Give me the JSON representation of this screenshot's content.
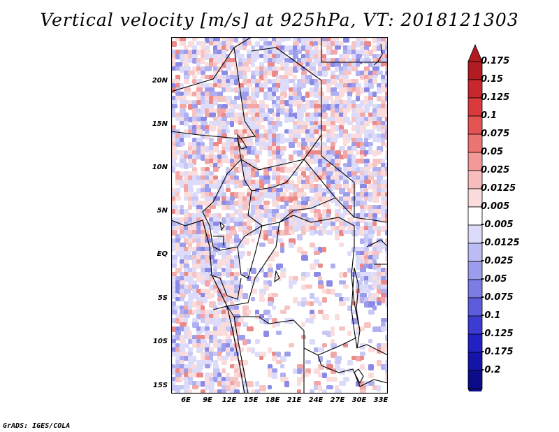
{
  "title": "Vertical velocity [m/s] at 925hPa, VT: 2018121303",
  "footer": "GrADS: IGES/COLA",
  "map": {
    "lon_range": [
      3,
      33
    ],
    "lat_range": [
      -16,
      24
    ],
    "lat_labels": [
      "20N",
      "15N",
      "10N",
      "5N",
      "EQ",
      "5S",
      "10S",
      "15S"
    ],
    "lon_labels": [
      "6E",
      "9E",
      "12E",
      "15E",
      "18E",
      "21E",
      "24E",
      "27E",
      "30E",
      "33E"
    ]
  },
  "colorbar": {
    "labels": [
      "0.175",
      "0.15",
      "0.125",
      "0.1",
      "0.075",
      "0.05",
      "0.025",
      "0.0125",
      "0.005",
      "-0.005",
      "-0.0125",
      "-0.025",
      "-0.05",
      "-0.075",
      "-0.1",
      "-0.125",
      "-0.175",
      "-0.2"
    ],
    "colors": [
      "#b01c22",
      "#c8282d",
      "#da3a3c",
      "#e45452",
      "#ec7472",
      "#f29a98",
      "#f7bcbb",
      "#fbdcdc",
      "#ffffff",
      "#dcdcfa",
      "#bcbcf4",
      "#9c9cec",
      "#7c7ce4",
      "#5c5cdc",
      "#3c3cd2",
      "#2222c4",
      "#1414a8",
      "#0c0c8a"
    ]
  }
}
